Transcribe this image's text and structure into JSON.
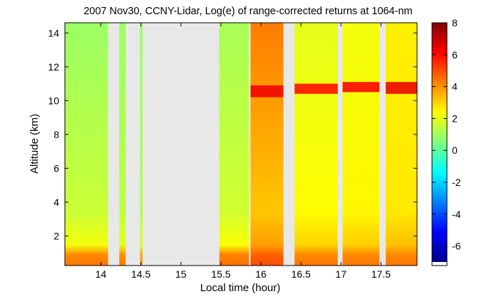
{
  "chart_data": {
    "type": "heatmap",
    "title": "2007 Nov30, CCNY-Lidar, Log(e) of range-corrected returns at 1064-nm",
    "xlabel": "Local time (hour)",
    "ylabel": "Altitude (km)",
    "xlim": [
      13.55,
      17.95
    ],
    "ylim": [
      0.25,
      14.6
    ],
    "x_ticks": [
      "14",
      "14.5",
      "15",
      "15.5",
      "16",
      "16.5",
      "17",
      "17.5"
    ],
    "y_ticks": [
      "2",
      "4",
      "6",
      "8",
      "10",
      "12",
      "14"
    ],
    "colorbar": {
      "range": [
        -7,
        8
      ],
      "ticks": [
        "-6",
        "-4",
        "-2",
        "0",
        "2",
        "4",
        "6",
        "8"
      ],
      "colormap": "jet"
    },
    "no_data_color": "#e8e8e8",
    "data_segments": [
      {
        "x_start": 13.55,
        "x_end": 14.09,
        "surface_value": 4.4,
        "boundary_value": 2.2,
        "top_value": 0.9
      },
      {
        "x_start": 14.23,
        "x_end": 14.31,
        "surface_value": 4.3,
        "boundary_value": 2.0,
        "top_value": 0.9
      },
      {
        "x_start": 14.49,
        "x_end": 14.52,
        "surface_value": 4.0,
        "boundary_value": 1.8,
        "top_value": 0.8
      },
      {
        "x_start": 15.48,
        "x_end": 15.85,
        "surface_value": 4.5,
        "boundary_value": 2.3,
        "top_value": 1.1
      },
      {
        "x_start": 15.87,
        "x_end": 16.28,
        "surface_value": 5.0,
        "boundary_value": 3.8,
        "top_value": 4.3,
        "cloud_top_km": 10.9,
        "cloud_bottom_km": 10.2,
        "cloud_value": 6.3
      },
      {
        "x_start": 16.42,
        "x_end": 16.96,
        "surface_value": 4.4,
        "boundary_value": 3.0,
        "top_value": 2.0,
        "cloud_top_km": 11.0,
        "cloud_bottom_km": 10.4,
        "cloud_value": 6.0
      },
      {
        "x_start": 17.02,
        "x_end": 17.48,
        "surface_value": 4.4,
        "boundary_value": 3.1,
        "top_value": 2.2,
        "cloud_top_km": 11.1,
        "cloud_bottom_km": 10.5,
        "cloud_value": 6.2
      },
      {
        "x_start": 17.56,
        "x_end": 17.95,
        "surface_value": 4.4,
        "boundary_value": 3.3,
        "top_value": 2.6,
        "cloud_top_km": 11.1,
        "cloud_bottom_km": 10.4,
        "cloud_value": 6.4
      }
    ]
  }
}
